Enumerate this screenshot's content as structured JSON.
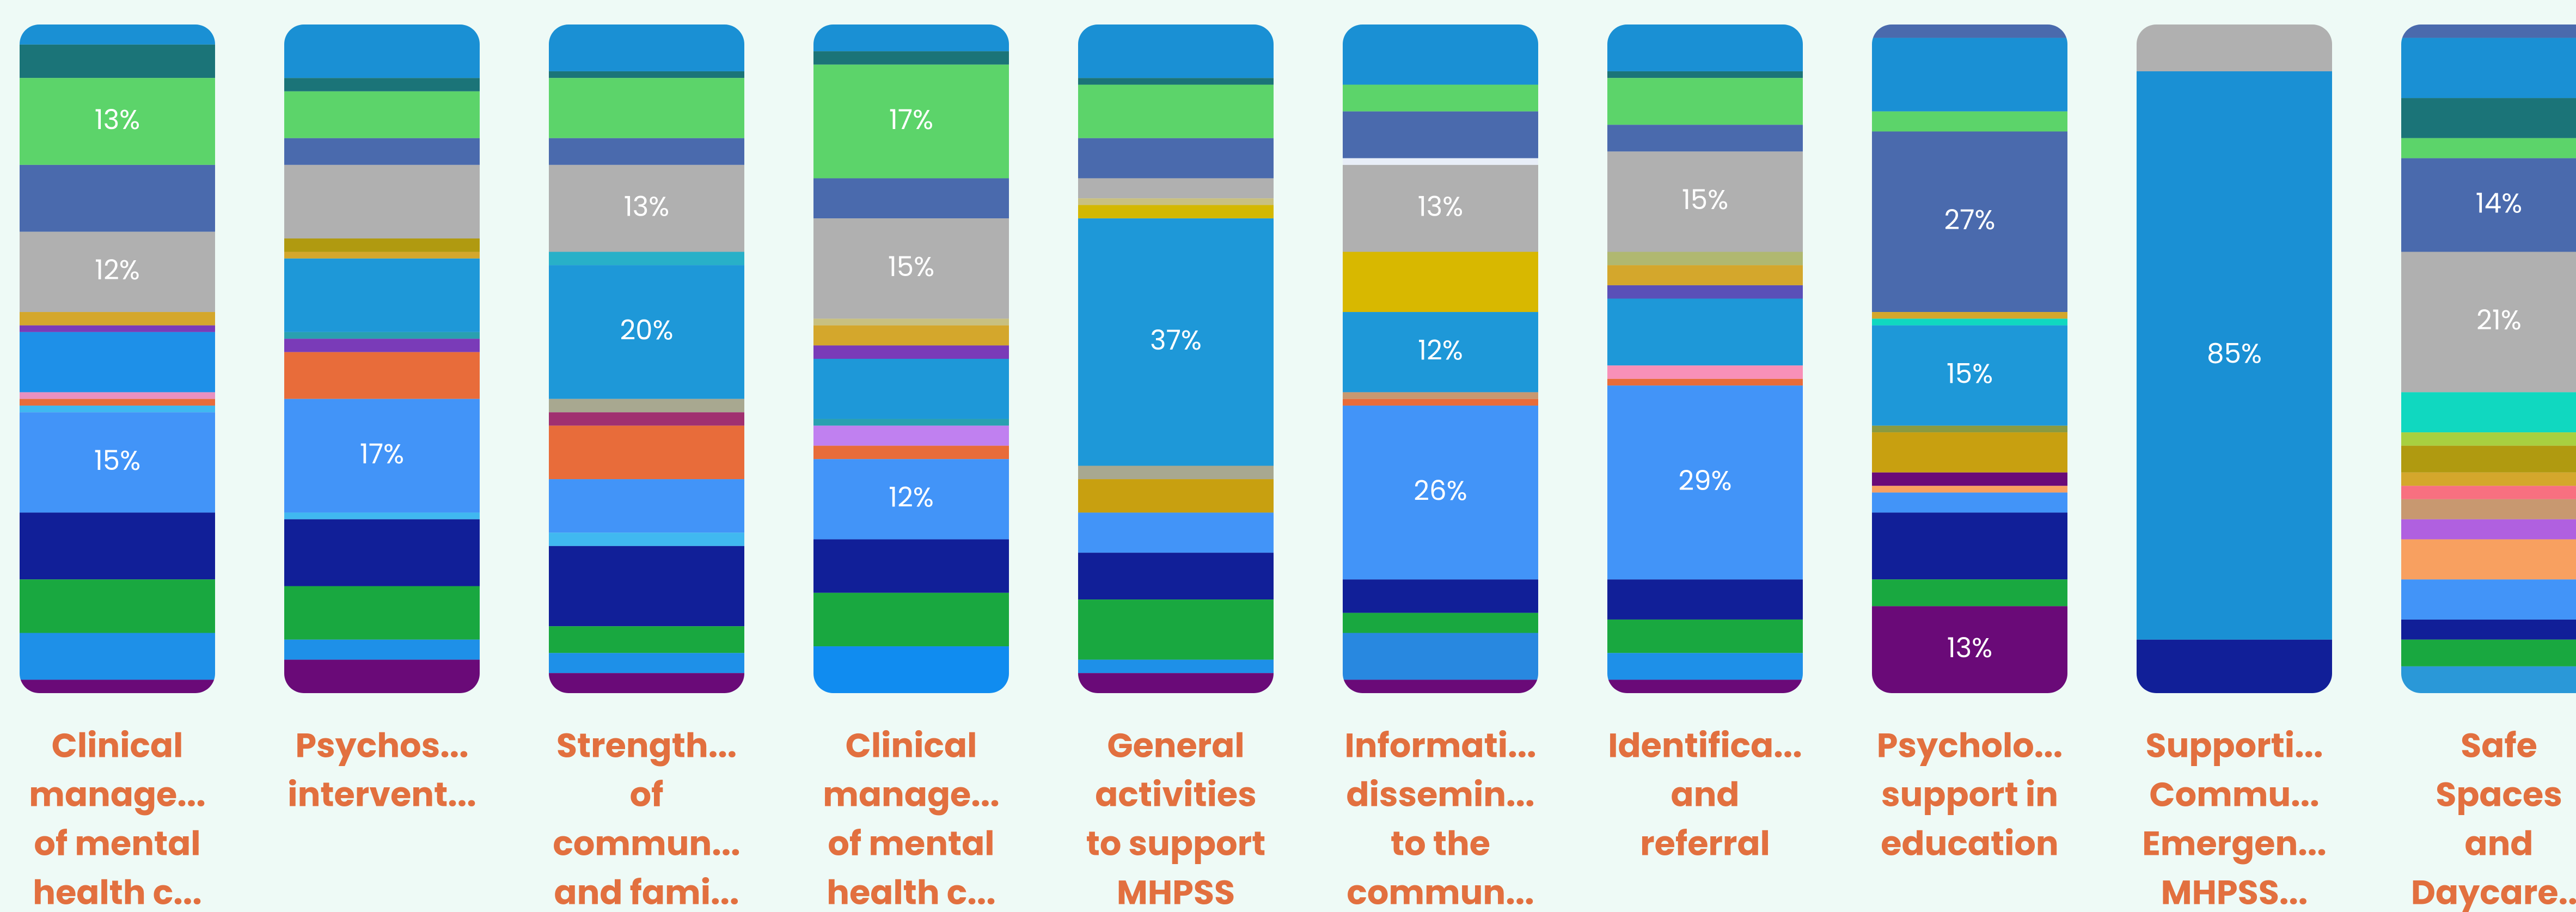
{
  "chart_data": {
    "type": "stacked_bar",
    "ylim": [
      0,
      100
    ],
    "categories": [
      [
        "Clinical",
        "manage...",
        "of mental",
        "health c..."
      ],
      [
        "Psychos...",
        "intervent..."
      ],
      [
        "Strength...",
        "of",
        "commun...",
        "and fami..."
      ],
      [
        "Clinical",
        "manage...",
        "of mental",
        "health c..."
      ],
      [
        "General",
        "activities",
        "to support",
        "MHPSS"
      ],
      [
        "Informati...",
        "dissemin...",
        "to the",
        "commun..."
      ],
      [
        "Identifica...",
        "and",
        "referral"
      ],
      [
        "Psycholo...",
        "support in",
        "education"
      ],
      [
        "Supporti...",
        "Commu...",
        "Emergen...",
        "MHPSS..."
      ],
      [
        "Safe",
        "Spaces",
        "and",
        "Daycare..."
      ]
    ],
    "stacks": [
      [
        {
          "value": 3,
          "color": "#1a90d4"
        },
        {
          "value": 5,
          "color": "#1b7478"
        },
        {
          "value": 13,
          "color": "#5cd46a",
          "label": "13%"
        },
        {
          "value": 10,
          "color": "#4a6aad"
        },
        {
          "value": 12,
          "color": "#b0b0b0",
          "label": "12%"
        },
        {
          "value": 2,
          "color": "#d4a72c"
        },
        {
          "value": 1,
          "color": "#7a3bb8"
        },
        {
          "value": 9,
          "color": "#1e90e8"
        },
        {
          "value": 1,
          "color": "#e890c0"
        },
        {
          "value": 1,
          "color": "#e86c3a"
        },
        {
          "value": 1,
          "color": "#40b8f0"
        },
        {
          "value": 15,
          "color": "#4294f8",
          "label": "15%"
        },
        {
          "value": 10,
          "color": "#111f98"
        },
        {
          "value": 8,
          "color": "#19a840"
        },
        {
          "value": 7,
          "color": "#1e90e8"
        },
        {
          "value": 2,
          "color": "#6a0a78"
        }
      ],
      [
        {
          "value": 8,
          "color": "#1a90d4"
        },
        {
          "value": 2,
          "color": "#1b7478"
        },
        {
          "value": 7,
          "color": "#5cd46a"
        },
        {
          "value": 4,
          "color": "#4a6aad"
        },
        {
          "value": 11,
          "color": "#b0b0b0"
        },
        {
          "value": 2,
          "color": "#b09a10"
        },
        {
          "value": 1,
          "color": "#d4a72c"
        },
        {
          "value": 11,
          "color": "#1e98d8"
        },
        {
          "value": 1,
          "color": "#2aa0b0"
        },
        {
          "value": 2,
          "color": "#7a3bb8"
        },
        {
          "value": 7,
          "color": "#e86c3a"
        },
        {
          "value": 17,
          "color": "#4294f8",
          "label": "17%"
        },
        {
          "value": 1,
          "color": "#40b8f0"
        },
        {
          "value": 10,
          "color": "#111f98"
        },
        {
          "value": 8,
          "color": "#19a840"
        },
        {
          "value": 3,
          "color": "#1e90e8"
        },
        {
          "value": 5,
          "color": "#6a0a78"
        }
      ],
      [
        {
          "value": 7,
          "color": "#1a90d4"
        },
        {
          "value": 1,
          "color": "#1b7478"
        },
        {
          "value": 9,
          "color": "#5cd46a"
        },
        {
          "value": 4,
          "color": "#4a6aad"
        },
        {
          "value": 13,
          "color": "#b0b0b0",
          "label": "13%"
        },
        {
          "value": 2,
          "color": "#28b0c8"
        },
        {
          "value": 20,
          "color": "#1e98d8",
          "label": "20%"
        },
        {
          "value": 2,
          "color": "#a8a890"
        },
        {
          "value": 2,
          "color": "#a03070"
        },
        {
          "value": 8,
          "color": "#e86c3a"
        },
        {
          "value": 8,
          "color": "#4294f8"
        },
        {
          "value": 2,
          "color": "#40b8f0"
        },
        {
          "value": 12,
          "color": "#111f98"
        },
        {
          "value": 4,
          "color": "#19a840"
        },
        {
          "value": 3,
          "color": "#1e90e8"
        },
        {
          "value": 3,
          "color": "#6a0a78"
        }
      ],
      [
        {
          "value": 4,
          "color": "#1a90d4"
        },
        {
          "value": 2,
          "color": "#1b7478"
        },
        {
          "value": 17,
          "color": "#5cd46a",
          "label": "17%"
        },
        {
          "value": 6,
          "color": "#4a6aad"
        },
        {
          "value": 15,
          "color": "#b0b0b0",
          "label": "15%"
        },
        {
          "value": 1,
          "color": "#c8c080"
        },
        {
          "value": 3,
          "color": "#d4a72c"
        },
        {
          "value": 2,
          "color": "#7a3bb8"
        },
        {
          "value": 9,
          "color": "#1e98d8"
        },
        {
          "value": 1,
          "color": "#2aa0b0"
        },
        {
          "value": 3,
          "color": "#c080f0"
        },
        {
          "value": 2,
          "color": "#e86c3a"
        },
        {
          "value": 12,
          "color": "#4294f8",
          "label": "12%"
        },
        {
          "value": 8,
          "color": "#111f98"
        },
        {
          "value": 8,
          "color": "#19a840"
        },
        {
          "value": 7,
          "color": "#108cf0"
        }
      ],
      [
        {
          "value": 8,
          "color": "#1a90d4"
        },
        {
          "value": 1,
          "color": "#1b7478"
        },
        {
          "value": 8,
          "color": "#5cd46a"
        },
        {
          "value": 6,
          "color": "#4a6aad"
        },
        {
          "value": 3,
          "color": "#b0b0b0"
        },
        {
          "value": 1,
          "color": "#c8c080"
        },
        {
          "value": 2,
          "color": "#d4b800"
        },
        {
          "value": 37,
          "color": "#1e98d8",
          "label": "37%"
        },
        {
          "value": 2,
          "color": "#a8a890"
        },
        {
          "value": 5,
          "color": "#c8a010"
        },
        {
          "value": 6,
          "color": "#4294f8"
        },
        {
          "value": 7,
          "color": "#111f98"
        },
        {
          "value": 9,
          "color": "#19a840"
        },
        {
          "value": 2,
          "color": "#1e90e8"
        },
        {
          "value": 3,
          "color": "#6a0a78"
        }
      ],
      [
        {
          "value": 9,
          "color": "#1a90d4"
        },
        {
          "value": 4,
          "color": "#5cd46a"
        },
        {
          "value": 7,
          "color": "#4a6aad"
        },
        {
          "value": 1,
          "color": "#e8eef8"
        },
        {
          "value": 13,
          "color": "#b0b0b0",
          "label": "13%"
        },
        {
          "value": 9,
          "color": "#d8b800"
        },
        {
          "value": 12,
          "color": "#1e98d8",
          "label": "12%"
        },
        {
          "value": 1,
          "color": "#c89870"
        },
        {
          "value": 1,
          "color": "#e86c3a"
        },
        {
          "value": 26,
          "color": "#4294f8",
          "label": "26%"
        },
        {
          "value": 5,
          "color": "#111f98"
        },
        {
          "value": 3,
          "color": "#19a840"
        },
        {
          "value": 7,
          "color": "#2888e0"
        },
        {
          "value": 2,
          "color": "#6a0a78"
        }
      ],
      [
        {
          "value": 7,
          "color": "#1a90d4"
        },
        {
          "value": 1,
          "color": "#1b7478"
        },
        {
          "value": 7,
          "color": "#5cd46a"
        },
        {
          "value": 4,
          "color": "#4a6aad"
        },
        {
          "value": 15,
          "color": "#b0b0b0",
          "label": "15%"
        },
        {
          "value": 2,
          "color": "#b0b870"
        },
        {
          "value": 3,
          "color": "#d4a72c"
        },
        {
          "value": 2,
          "color": "#5a50b8"
        },
        {
          "value": 10,
          "color": "#1e98d8"
        },
        {
          "value": 2,
          "color": "#f890b8"
        },
        {
          "value": 1,
          "color": "#e86c3a"
        },
        {
          "value": 29,
          "color": "#4294f8",
          "label": "29%"
        },
        {
          "value": 6,
          "color": "#111f98"
        },
        {
          "value": 5,
          "color": "#19a840"
        },
        {
          "value": 4,
          "color": "#1e90e8"
        },
        {
          "value": 2,
          "color": "#6a0a78"
        }
      ],
      [
        {
          "value": 2,
          "color": "#4a6aad"
        },
        {
          "value": 11,
          "color": "#1a90d4"
        },
        {
          "value": 3,
          "color": "#5cd46a"
        },
        {
          "value": 27,
          "color": "#4a6aad",
          "label": "27%"
        },
        {
          "value": 1,
          "color": "#d4a72c"
        },
        {
          "value": 1,
          "color": "#10d8c0"
        },
        {
          "value": 15,
          "color": "#1e98d8",
          "label": "15%"
        },
        {
          "value": 1,
          "color": "#8a9a40"
        },
        {
          "value": 6,
          "color": "#c8a010"
        },
        {
          "value": 2,
          "color": "#6a0a78"
        },
        {
          "value": 1,
          "color": "#f8a060"
        },
        {
          "value": 3,
          "color": "#4294f8"
        },
        {
          "value": 10,
          "color": "#111f98"
        },
        {
          "value": 4,
          "color": "#19a840"
        },
        {
          "value": 13,
          "color": "#6a0a78",
          "label": "13%"
        }
      ],
      [
        {
          "value": 7,
          "color": "#b0b0b0"
        },
        {
          "value": 85,
          "color": "#1a90d4",
          "label": "85%"
        },
        {
          "value": 8,
          "color": "#111f98"
        }
      ],
      [
        {
          "value": 2,
          "color": "#4a6aad"
        },
        {
          "value": 9,
          "color": "#1a90d4"
        },
        {
          "value": 6,
          "color": "#1b7478"
        },
        {
          "value": 3,
          "color": "#5cd46a"
        },
        {
          "value": 14,
          "color": "#4a6aad",
          "label": "14%"
        },
        {
          "value": 21,
          "color": "#b0b0b0",
          "label": "21%"
        },
        {
          "value": 6,
          "color": "#10d8c0"
        },
        {
          "value": 2,
          "color": "#a8d040"
        },
        {
          "value": 4,
          "color": "#b09a10"
        },
        {
          "value": 2,
          "color": "#d4a72c"
        },
        {
          "value": 2,
          "color": "#f87080"
        },
        {
          "value": 3,
          "color": "#c89870"
        },
        {
          "value": 3,
          "color": "#b060e0"
        },
        {
          "value": 6,
          "color": "#f8a060"
        },
        {
          "value": 6,
          "color": "#4294f8"
        },
        {
          "value": 3,
          "color": "#111f98"
        },
        {
          "value": 4,
          "color": "#19a840"
        },
        {
          "value": 4,
          "color": "#2a98d8"
        }
      ]
    ]
  }
}
